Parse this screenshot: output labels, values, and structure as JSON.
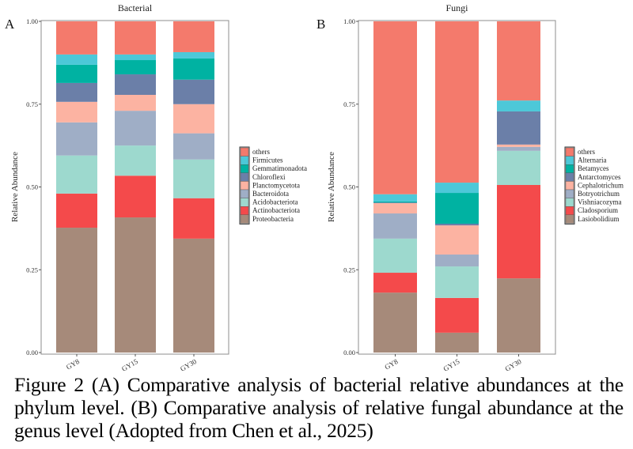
{
  "chart_data": [
    {
      "panel": "A",
      "type": "bar",
      "stacked": true,
      "title": "Bacterial",
      "xlabel": "",
      "ylabel": "Relative Abundance",
      "ylim": [
        0,
        1
      ],
      "yticks": [
        "0.00",
        "0.25",
        "0.50",
        "0.75",
        "1.00"
      ],
      "categories": [
        "GY8",
        "GY15",
        "GY30"
      ],
      "legend_position": "right",
      "series": [
        {
          "name": "Proteobacteria",
          "color": "#A68A7A",
          "values": [
            0.377,
            0.408,
            0.344
          ]
        },
        {
          "name": "Actinobacteriota",
          "color": "#F44A4B",
          "values": [
            0.103,
            0.126,
            0.122
          ]
        },
        {
          "name": "Acidobacteriota",
          "color": "#9DD9CE",
          "values": [
            0.115,
            0.091,
            0.117
          ]
        },
        {
          "name": "Bacteroidota",
          "color": "#9FAEC6",
          "values": [
            0.1,
            0.105,
            0.079
          ]
        },
        {
          "name": "Planctomycetota",
          "color": "#FCB3A2",
          "values": [
            0.062,
            0.048,
            0.088
          ]
        },
        {
          "name": "Chloroflexi",
          "color": "#6B7FA8",
          "values": [
            0.057,
            0.062,
            0.074
          ]
        },
        {
          "name": "Gemmatimonadota",
          "color": "#00B2A2",
          "values": [
            0.055,
            0.043,
            0.064
          ]
        },
        {
          "name": "Firmicutes",
          "color": "#4DC8D8",
          "values": [
            0.031,
            0.017,
            0.019
          ]
        },
        {
          "name": "others",
          "color": "#F47A6C",
          "values": [
            0.1,
            0.1,
            0.093
          ]
        }
      ]
    },
    {
      "panel": "B",
      "type": "bar",
      "stacked": true,
      "title": "Fungi",
      "xlabel": "",
      "ylabel": "Relative Abundance",
      "ylim": [
        0,
        1
      ],
      "yticks": [
        "0.00",
        "0.25",
        "0.50",
        "0.75",
        "1.00"
      ],
      "categories": [
        "GY8",
        "GY15",
        "GY30"
      ],
      "legend_position": "right",
      "series": [
        {
          "name": "Lasiobolidium",
          "color": "#A68A7A",
          "values": [
            0.181,
            0.06,
            0.224
          ]
        },
        {
          "name": "Cladosporium",
          "color": "#F44A4B",
          "values": [
            0.06,
            0.105,
            0.282
          ]
        },
        {
          "name": "Vishniacozyma",
          "color": "#9DD9CE",
          "values": [
            0.103,
            0.095,
            0.103
          ]
        },
        {
          "name": "Botryotrichum",
          "color": "#9FAEC6",
          "values": [
            0.076,
            0.036,
            0.012
          ]
        },
        {
          "name": "Cephalotrichum",
          "color": "#FCB3A2",
          "values": [
            0.031,
            0.088,
            0.007
          ]
        },
        {
          "name": "Antarctomyces",
          "color": "#6B7FA8",
          "values": [
            0.002,
            0.005,
            0.1
          ]
        },
        {
          "name": "Betamyces",
          "color": "#00B2A2",
          "values": [
            0.003,
            0.093,
            0.0
          ]
        },
        {
          "name": "Alternaria",
          "color": "#4DC8D8",
          "values": [
            0.022,
            0.031,
            0.033
          ]
        },
        {
          "name": "others",
          "color": "#F47A6C",
          "values": [
            0.522,
            0.487,
            0.239
          ]
        }
      ]
    }
  ],
  "caption": "Figure 2 (A) Comparative analysis of bacterial relative abundances at the phylum level. (B) Comparative analysis of relative fungal abundance at the genus level (Adopted from Chen et al., 2025)"
}
